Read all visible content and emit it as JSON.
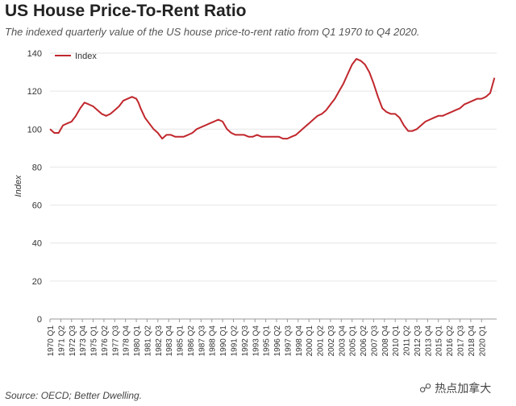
{
  "header": {
    "title": "US House Price-To-Rent Ratio",
    "subtitle": "The indexed quarterly value of the US house price-to-rent ratio from Q1 1970 to Q4 2020."
  },
  "footer": {
    "source": "Source: OECD; Better Dwelling.",
    "watermark": "热点加拿大",
    "watermark_icon": "wechat-icon"
  },
  "colors": {
    "series": "#c0272d",
    "grid": "#e6e6e6",
    "axis": "#333333"
  },
  "chart_data": {
    "type": "line",
    "title": "US House Price-To-Rent Ratio",
    "xlabel": "",
    "ylabel": "Index",
    "ylim": [
      0,
      140
    ],
    "yticks": [
      0,
      20,
      40,
      60,
      80,
      100,
      120,
      140
    ],
    "xlim": [
      1970,
      2021.75
    ],
    "grid": true,
    "legend": "top-left",
    "x_tick_labels": [
      "1970 Q1",
      "1971 Q2",
      "1972 Q3",
      "1973 Q4",
      "1975 Q1",
      "1976 Q2",
      "1977 Q3",
      "1978 Q4",
      "1980 Q1",
      "1981 Q2",
      "1982 Q3",
      "1983 Q4",
      "1985 Q1",
      "1986 Q2",
      "1987 Q3",
      "1988 Q4",
      "1990 Q1",
      "1991 Q2",
      "1992 Q3",
      "1993 Q4",
      "1995 Q1",
      "1996 Q2",
      "1997 Q3",
      "1998 Q4",
      "2000 Q1",
      "2001 Q2",
      "2002 Q3",
      "2003 Q4",
      "2005 Q1",
      "2006 Q2",
      "2007 Q3",
      "2008 Q4",
      "2010 Q1",
      "2011 Q2",
      "2012 Q3",
      "2013 Q4",
      "2015 Q1",
      "2016 Q2",
      "2017 Q3",
      "2018 Q4",
      "2020 Q1"
    ],
    "series": [
      {
        "name": "Index",
        "x": [
          1970.0,
          1970.5,
          1971.0,
          1971.5,
          1972.0,
          1972.5,
          1973.0,
          1973.5,
          1974.0,
          1974.5,
          1975.0,
          1975.5,
          1976.0,
          1976.5,
          1977.0,
          1977.5,
          1978.0,
          1978.5,
          1979.0,
          1979.5,
          1980.0,
          1980.25,
          1980.5,
          1981.0,
          1981.5,
          1982.0,
          1982.5,
          1983.0,
          1983.5,
          1984.0,
          1984.5,
          1985.0,
          1985.5,
          1986.0,
          1986.5,
          1987.0,
          1987.5,
          1988.0,
          1988.5,
          1989.0,
          1989.5,
          1990.0,
          1990.5,
          1991.0,
          1991.5,
          1992.0,
          1992.5,
          1993.0,
          1993.5,
          1994.0,
          1994.5,
          1995.0,
          1995.5,
          1996.0,
          1996.5,
          1997.0,
          1997.5,
          1998.0,
          1998.5,
          1999.0,
          1999.5,
          2000.0,
          2000.5,
          2001.0,
          2001.5,
          2002.0,
          2002.5,
          2003.0,
          2003.5,
          2004.0,
          2004.5,
          2005.0,
          2005.5,
          2006.0,
          2006.25,
          2006.5,
          2007.0,
          2007.5,
          2008.0,
          2008.5,
          2009.0,
          2009.5,
          2010.0,
          2010.5,
          2011.0,
          2011.5,
          2012.0,
          2012.5,
          2013.0,
          2013.5,
          2014.0,
          2014.5,
          2015.0,
          2015.5,
          2016.0,
          2016.5,
          2017.0,
          2017.5,
          2018.0,
          2018.5,
          2019.0,
          2019.5,
          2020.0,
          2020.5,
          2021.0,
          2021.5
        ],
        "values": [
          100,
          98,
          98,
          102,
          103,
          104,
          107,
          111,
          114,
          113,
          112,
          110,
          108,
          107,
          108,
          110,
          112,
          115,
          116,
          117,
          116,
          114,
          111,
          106,
          103,
          100,
          98,
          95,
          97,
          97,
          96,
          96,
          96,
          97,
          98,
          100,
          101,
          102,
          103,
          104,
          105,
          104,
          100,
          98,
          97,
          97,
          97,
          96,
          96,
          97,
          96,
          96,
          96,
          96,
          96,
          95,
          95,
          96,
          97,
          99,
          101,
          103,
          105,
          107,
          108,
          110,
          113,
          116,
          120,
          124,
          129,
          134,
          137,
          136,
          135,
          134,
          130,
          124,
          117,
          111,
          109,
          108,
          108,
          106,
          102,
          99,
          99,
          100,
          102,
          104,
          105,
          106,
          107,
          107,
          108,
          109,
          110,
          111,
          113,
          114,
          115,
          116,
          116,
          117,
          119,
          127
        ]
      }
    ]
  }
}
